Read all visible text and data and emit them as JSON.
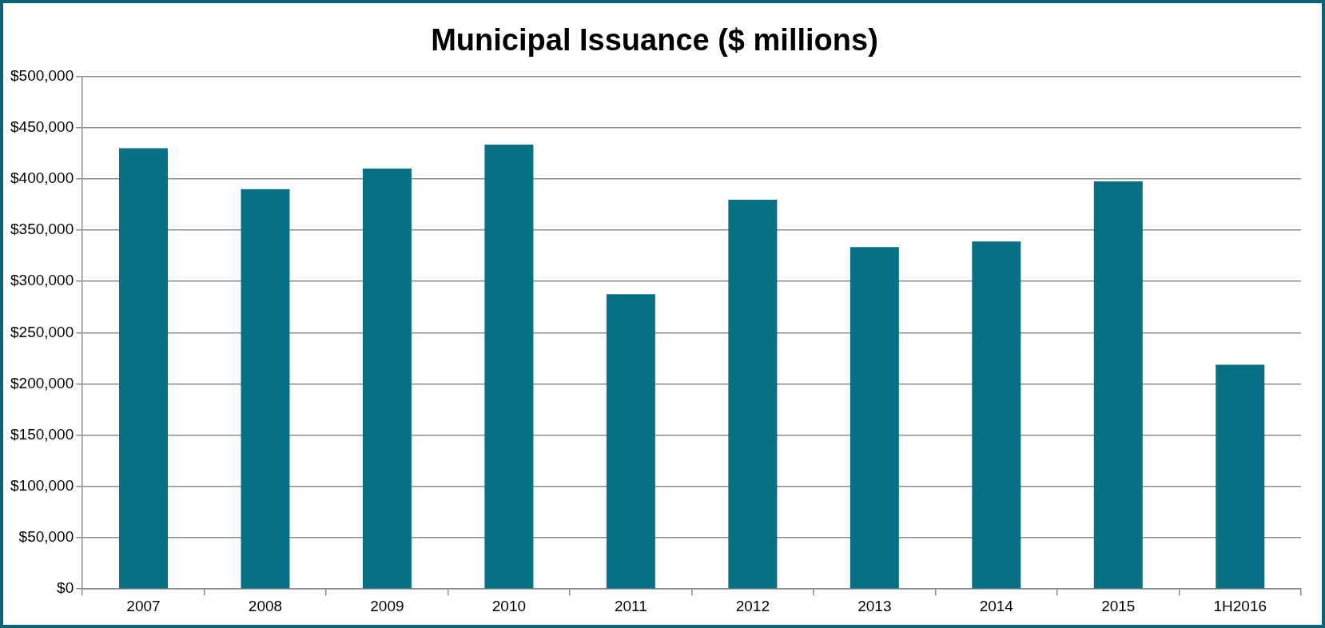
{
  "chart_data": {
    "type": "bar",
    "title": "Municipal Issuance ($ millions)",
    "categories": [
      "2007",
      "2008",
      "2009",
      "2010",
      "2011",
      "2012",
      "2013",
      "2014",
      "2015",
      "1H2016"
    ],
    "values": [
      430000,
      390000,
      410000,
      433500,
      287500,
      379600,
      333500,
      339000,
      397600,
      218700
    ],
    "color": "#077085",
    "ylim": [
      0,
      500000
    ],
    "yticks": [
      {
        "value": 0,
        "label": "$0"
      },
      {
        "value": 50000,
        "label": "$50,000"
      },
      {
        "value": 100000,
        "label": "$100,000"
      },
      {
        "value": 150000,
        "label": "$150,000"
      },
      {
        "value": 200000,
        "label": "$200,000"
      },
      {
        "value": 250000,
        "label": "$250,000"
      },
      {
        "value": 300000,
        "label": "$300,000"
      },
      {
        "value": 350000,
        "label": "$350,000"
      },
      {
        "value": 400000,
        "label": "$400,000"
      },
      {
        "value": 450000,
        "label": "$450,000"
      },
      {
        "value": 500000,
        "label": "$500,000"
      }
    ],
    "grid": "y",
    "legend": false
  }
}
